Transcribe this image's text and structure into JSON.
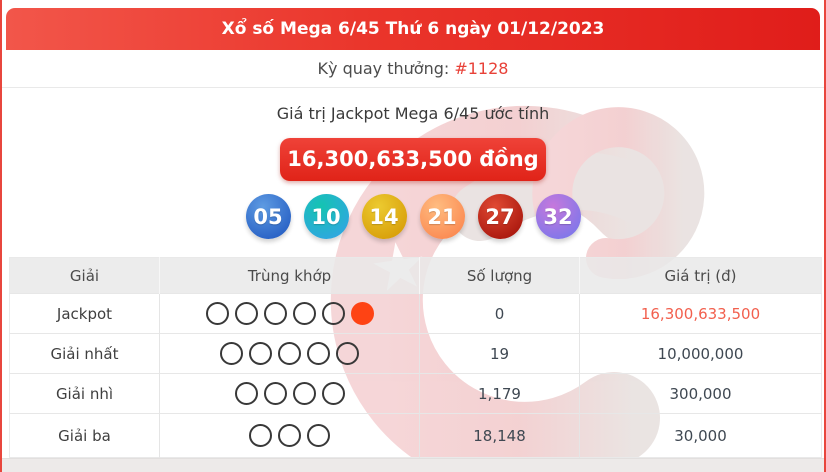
{
  "header": {
    "title": "Xổ số Mega 6/45 Thứ 6 ngày 01/12/2023"
  },
  "draw": {
    "label": "Kỳ quay thưởng:",
    "number": "#1128"
  },
  "jackpot": {
    "caption": "Giá trị Jackpot Mega 6/45 ước tính",
    "amount": "16,300,633,500 đồng"
  },
  "balls": [
    {
      "number": "05",
      "color_top": "#5e9be2",
      "color_bottom": "#2a63c6"
    },
    {
      "number": "10",
      "color_top": "#14c4b1",
      "color_bottom": "#2ea8de"
    },
    {
      "number": "14",
      "color_top": "#ecca30",
      "color_bottom": "#d9a10b"
    },
    {
      "number": "21",
      "color_top": "#ffbc80",
      "color_bottom": "#fb8c54"
    },
    {
      "number": "27",
      "color_top": "#e04a33",
      "color_bottom": "#ac1a10"
    },
    {
      "number": "32",
      "color_top": "#c678dc",
      "color_bottom": "#8277e9"
    }
  ],
  "table": {
    "headers": [
      "Giải",
      "Trùng khớp",
      "Số lượng",
      "Giá trị (đ)"
    ],
    "rows": [
      {
        "prize": "Jackpot",
        "match_open": 5,
        "match_filled": 1,
        "quantity": "0",
        "value": "16,300,633,500",
        "value_highlight": true
      },
      {
        "prize": "Giải nhất",
        "match_open": 5,
        "match_filled": 0,
        "quantity": "19",
        "value": "10,000,000",
        "value_highlight": false
      },
      {
        "prize": "Giải nhì",
        "match_open": 4,
        "match_filled": 0,
        "quantity": "1,179",
        "value": "300,000",
        "value_highlight": false
      },
      {
        "prize": "Giải ba",
        "match_open": 3,
        "match_filled": 0,
        "quantity": "18,148",
        "value": "30,000",
        "value_highlight": false
      }
    ]
  },
  "colors": {
    "header_gradient_left": "#f2564a",
    "header_gradient_right": "#e01d1a",
    "accent_red": "#e84138",
    "jackpot_value_text": "#f2604e",
    "filled_circle": "#fe4314",
    "watermark_pink": "#f5d2d4",
    "watermark_gray": "#e8e1df"
  }
}
